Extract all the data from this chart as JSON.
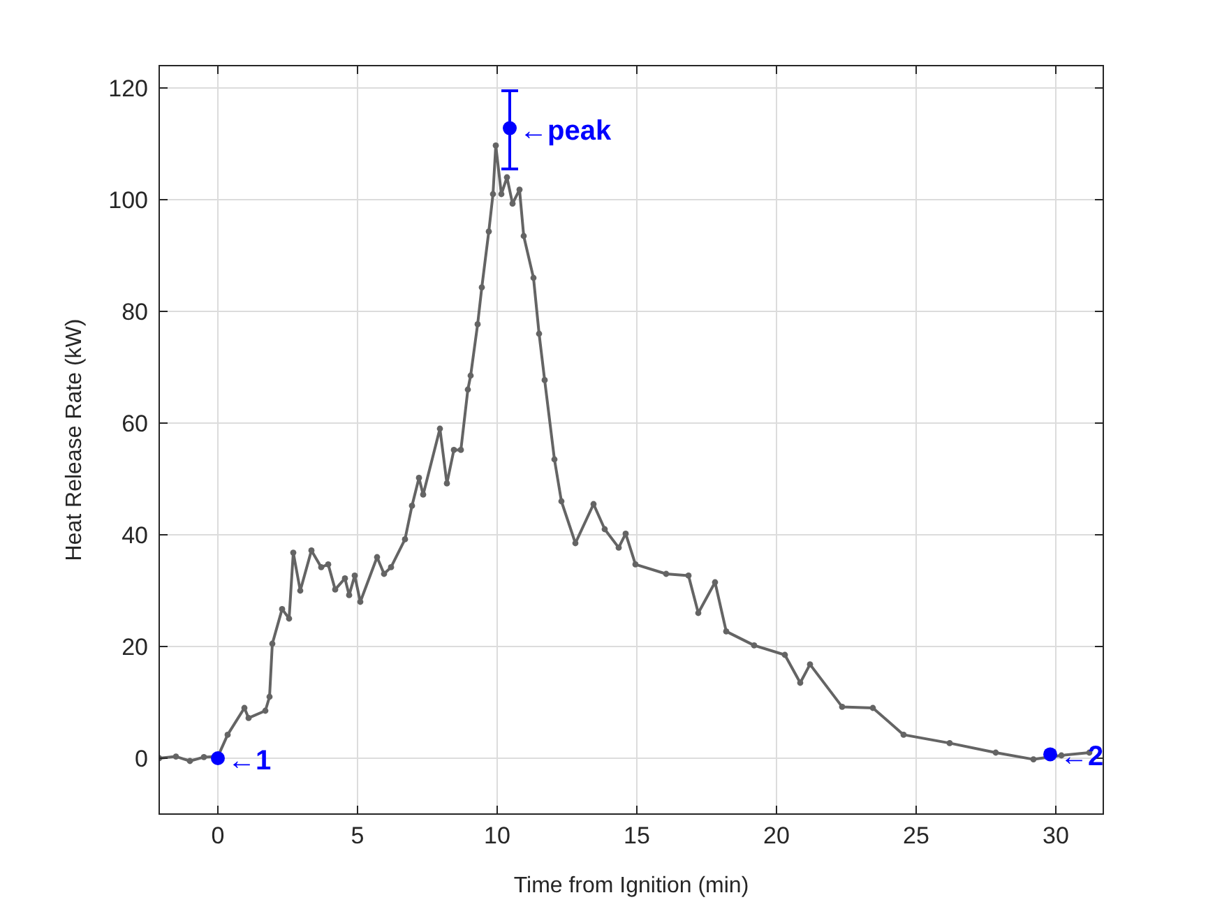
{
  "chart_data": {
    "type": "line",
    "xlabel": "Time from Ignition (min)",
    "ylabel": "Heat Release Rate (kW)",
    "xlim": [
      -2.1,
      31.7
    ],
    "ylim": [
      -10,
      124
    ],
    "xticks": [
      0,
      5,
      10,
      15,
      20,
      25,
      30
    ],
    "yticks": [
      0,
      20,
      40,
      60,
      80,
      100,
      120
    ],
    "grid": true,
    "marker": "circle",
    "line_style": "solid",
    "series": [
      {
        "color": "#646464",
        "x": [
          -2.1,
          -1.5,
          -1,
          -0.5,
          0,
          0.35,
          0.95,
          1.1,
          1.7,
          1.85,
          1.95,
          2.3,
          2.55,
          2.7,
          2.95,
          3.35,
          3.7,
          3.95,
          4.2,
          4.55,
          4.7,
          4.9,
          5.1,
          5.7,
          5.95,
          6.2,
          6.7,
          6.95,
          7.2,
          7.35,
          7.95,
          8.2,
          8.45,
          8.7,
          8.95,
          9.05,
          9.3,
          9.45,
          9.7,
          9.85,
          9.95,
          10.15,
          10.35,
          10.55,
          10.8,
          10.95,
          11.3,
          11.5,
          11.7,
          12.05,
          12.3,
          12.8,
          13.45,
          13.85,
          14.35,
          14.6,
          14.95,
          16.05,
          16.85,
          17.2,
          17.8,
          18.2,
          19.2,
          20.3,
          20.85,
          21.2,
          22.35,
          23.45,
          24.55,
          26.2,
          27.85,
          29.2,
          30.2,
          31.2
        ],
        "values": [
          0,
          0.3,
          -0.5,
          0.2,
          0.3,
          4.2,
          9,
          7.2,
          8.5,
          11,
          20.5,
          26.7,
          25,
          36.8,
          30,
          37.2,
          34.2,
          34.7,
          30.2,
          32.2,
          29.2,
          32.7,
          28,
          36,
          33,
          34.2,
          39.2,
          45.2,
          50.2,
          47.2,
          59,
          49.2,
          55.2,
          55.2,
          66,
          68.5,
          77.7,
          84.3,
          94.3,
          101,
          109.7,
          101,
          104,
          99.3,
          101.8,
          93.5,
          86,
          76,
          67.7,
          53.5,
          46,
          38.5,
          45.5,
          41,
          37.7,
          40.2,
          34.7,
          33,
          32.7,
          26,
          31.5,
          22.7,
          20.2,
          18.5,
          13.5,
          16.8,
          9.2,
          9,
          4.2,
          2.7,
          1,
          -0.2,
          0.5,
          1
        ]
      },
      {
        "type": "scatter",
        "color": "#0000ff",
        "x": [
          0,
          29.8,
          10.45
        ],
        "values": [
          0,
          0.7,
          112.8
        ],
        "errors": [
          null,
          null,
          [
            105.5,
            119.5
          ]
        ]
      }
    ],
    "annotations": [
      {
        "text": "←1",
        "x": 0,
        "y": 0
      },
      {
        "text": "←2",
        "x": 29.8,
        "y": 0.7
      },
      {
        "text": "←peak",
        "x": 10.45,
        "y": 112.8
      }
    ]
  }
}
